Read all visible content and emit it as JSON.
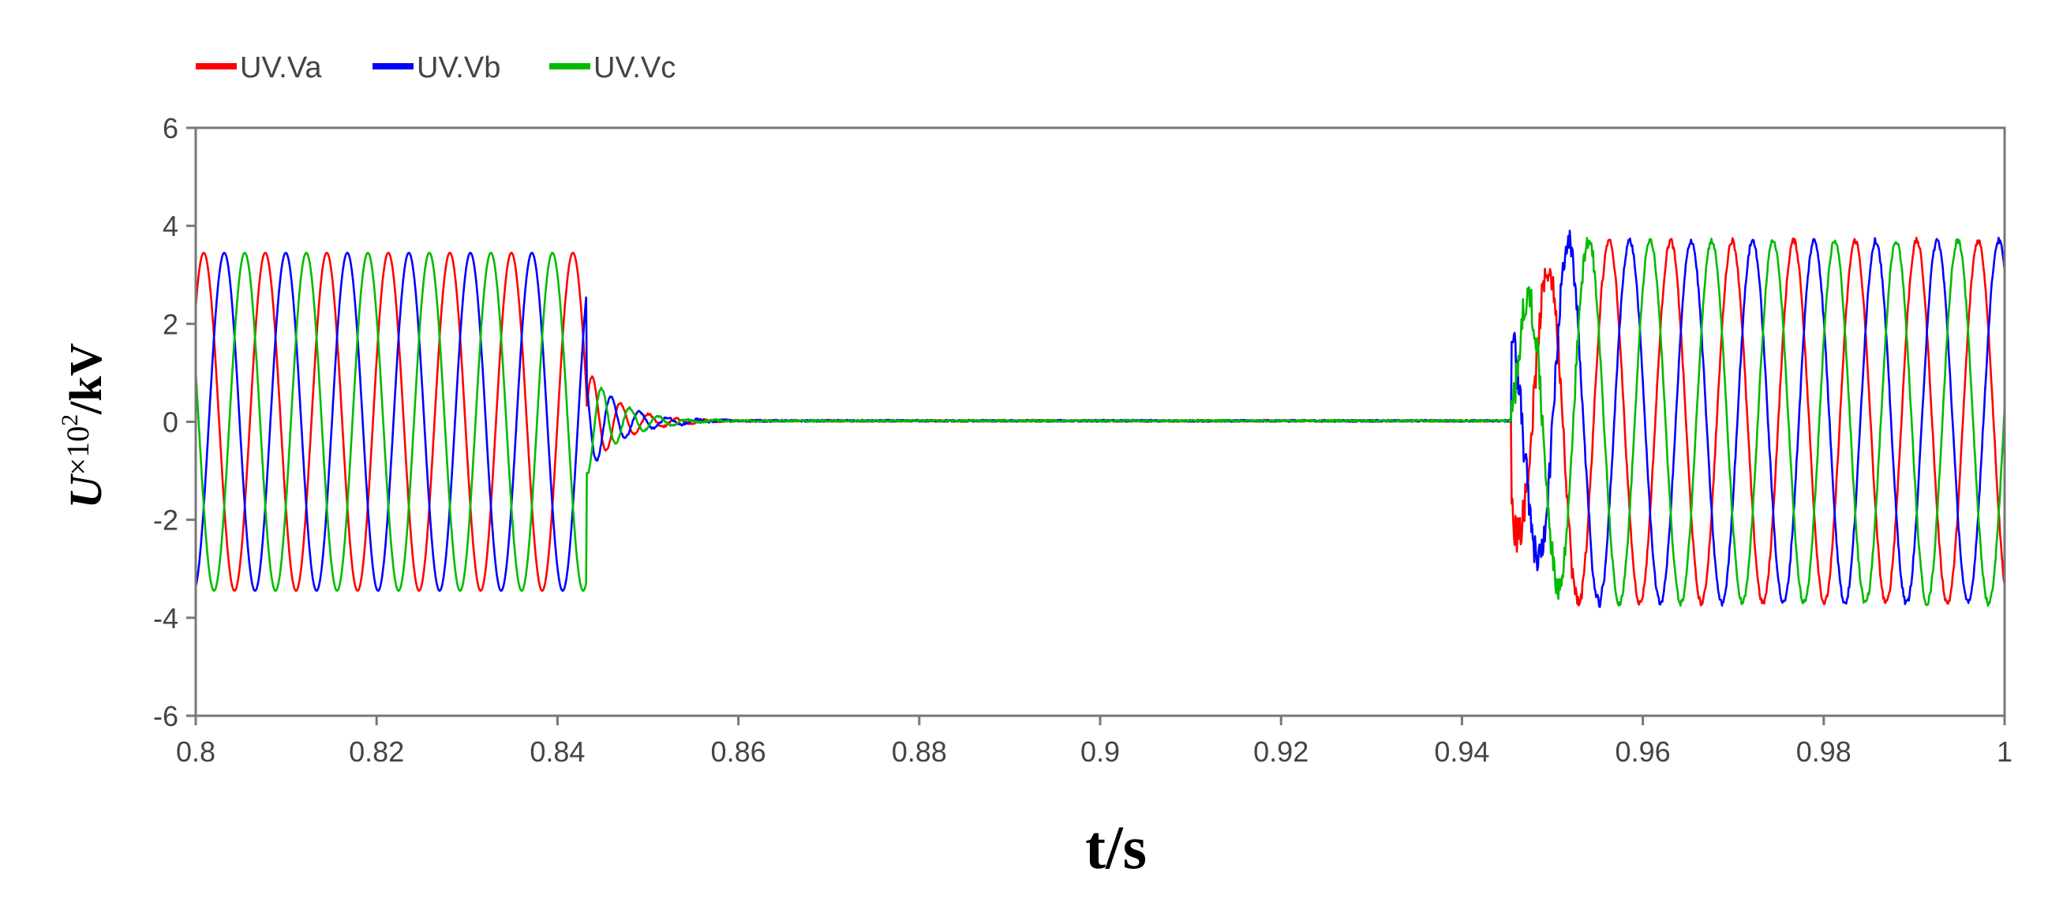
{
  "chart_data": {
    "type": "line",
    "xlabel": "t/s",
    "ylabel": {
      "symbol": "U",
      "multiplier": "×10",
      "exponent": "2",
      "unit": "/kV"
    },
    "xlim": [
      0.8,
      1.0
    ],
    "ylim": [
      -6,
      6
    ],
    "xticks": [
      "0.8",
      "0.82",
      "0.84",
      "0.86",
      "0.88",
      "0.9",
      "0.92",
      "0.94",
      "0.96",
      "0.98",
      "1"
    ],
    "yticks": [
      "6",
      "4",
      "2",
      "0",
      "-2",
      "-4",
      "-6"
    ],
    "grid": false,
    "legend_position": "top-left",
    "frequency_hz": 147,
    "series": [
      {
        "name": "UV.Va",
        "color": "#ff0000",
        "pre_fault_amplitude": 3.45,
        "pre_fault_phase_deg": 43,
        "fault_start": 0.8432,
        "recovery_start": 0.9455,
        "post_fault_amplitude": 3.7,
        "post_fault_phase_deg": -120
      },
      {
        "name": "UV.Vb",
        "color": "#0000ff",
        "pre_fault_amplitude": 3.45,
        "pre_fault_phase_deg": -77,
        "fault_start": 0.8432,
        "recovery_start": 0.9455,
        "post_fault_amplitude": 3.7,
        "post_fault_phase_deg": 120
      },
      {
        "name": "UV.Vc",
        "color": "#00bb00",
        "pre_fault_amplitude": 3.45,
        "pre_fault_phase_deg": 163,
        "fault_start": 0.8432,
        "recovery_start": 0.9455,
        "post_fault_amplitude": 3.7,
        "post_fault_phase_deg": 0
      }
    ]
  }
}
